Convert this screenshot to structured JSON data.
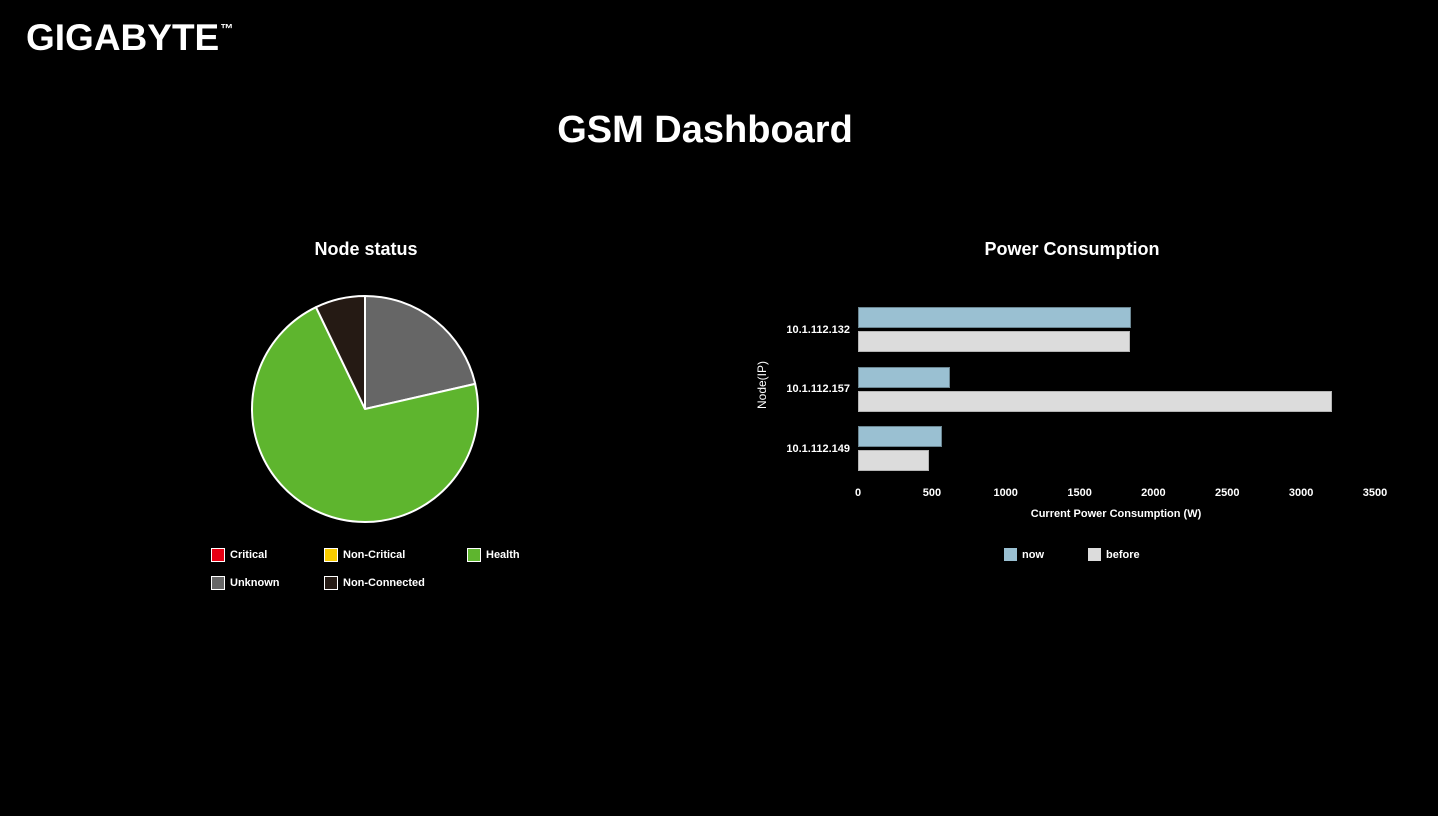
{
  "brand": {
    "logo_text": "GIGABYTE",
    "trademark": "™"
  },
  "page": {
    "title": "GSM Dashboard"
  },
  "colors": {
    "background": "#000000",
    "text": "#ffffff"
  },
  "chart_data": [
    {
      "type": "pie",
      "title": "Node status",
      "categories": [
        "Critical",
        "Non-Critical",
        "Health",
        "Unknown",
        "Non-Connected"
      ],
      "values": [
        0,
        0,
        10,
        3,
        1
      ],
      "percentages": [
        0,
        0,
        71.4,
        21.4,
        7.1
      ],
      "colors": [
        "#e60013",
        "#f8cb00",
        "#5eb52e",
        "#666666",
        "#251a14"
      ],
      "draw_order": [
        "Unknown",
        "Health",
        "Non-Connected"
      ],
      "start": "top",
      "direction": "clockwise",
      "slice_border_color": "#ffffff",
      "legend_position": "bottom-left"
    },
    {
      "type": "bar",
      "orientation": "horizontal",
      "title": "Power Consumption",
      "xlabel": "Current Power Consumption (W)",
      "ylabel": "Node(IP)",
      "categories": [
        "10.1.112.132",
        "10.1.112.157",
        "10.1.112.149"
      ],
      "series": [
        {
          "name": "now",
          "color": "#9ac0d2",
          "values": [
            1850,
            625,
            570
          ]
        },
        {
          "name": "before",
          "color": "#dcdcdc",
          "values": [
            1840,
            3210,
            480
          ]
        }
      ],
      "xlim": [
        0,
        3500
      ],
      "xticks": [
        0,
        500,
        1000,
        1500,
        2000,
        2500,
        3000,
        3500
      ],
      "grid": false,
      "legend_position": "bottom"
    }
  ]
}
